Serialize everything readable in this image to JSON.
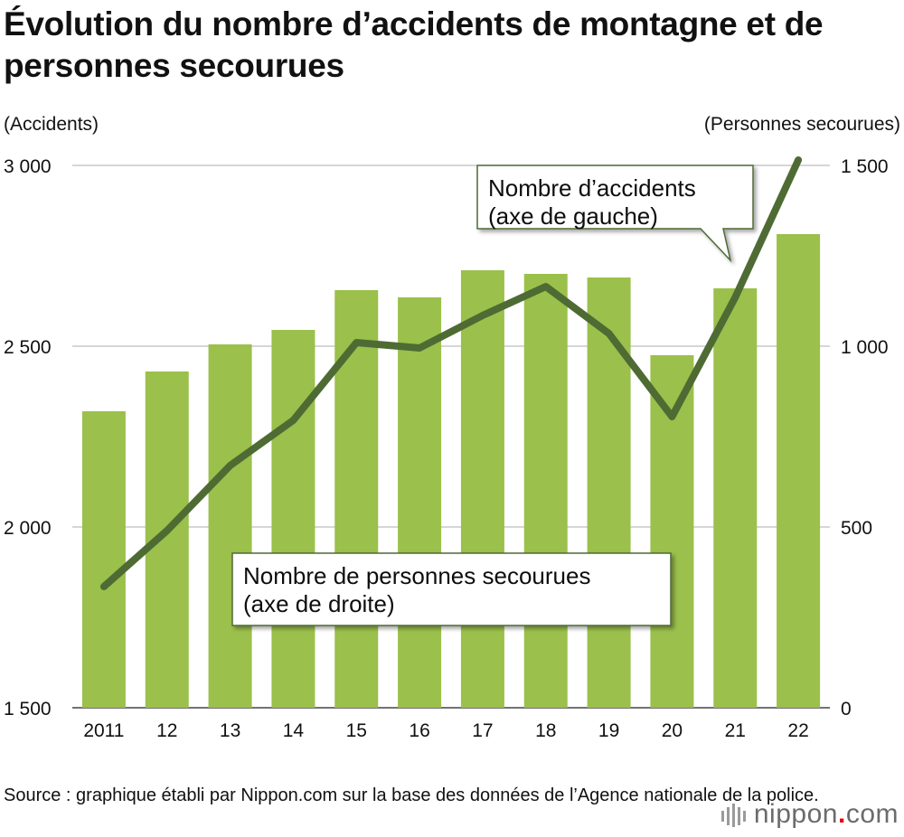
{
  "title": "Évolution du nombre d’accidents de montagne et de personnes secourues",
  "left_axis_unit": "(Accidents)",
  "right_axis_unit": "(Personnes secourues)",
  "source": "Source : graphique établi par Nippon.com sur la base des données de l’Agence nationale de la police.",
  "logo": {
    "name": "nippon",
    "dot": ".",
    "suffix": "com",
    "icon": "nippon-logo-icon"
  },
  "colors": {
    "bar": "#9bc04b",
    "line": "#4e6b34",
    "grid": "#bdbdbd",
    "text": "#111111"
  },
  "chart_data": {
    "type": "bar",
    "categories": [
      "2011",
      "12",
      "13",
      "14",
      "15",
      "16",
      "17",
      "18",
      "19",
      "20",
      "21",
      "22"
    ],
    "series": [
      {
        "name": "Nombre d’accidents",
        "type": "bar",
        "axis": "left",
        "values": [
          2320,
          2430,
          2505,
          2545,
          2655,
          2635,
          2710,
          2700,
          2690,
          2475,
          2660,
          2810
        ]
      },
      {
        "name": "Nombre de personnes secourues",
        "type": "line",
        "axis": "right",
        "values": [
          335,
          490,
          670,
          795,
          1010,
          995,
          1085,
          1165,
          1035,
          805,
          1135,
          1515
        ]
      }
    ],
    "left_axis": {
      "label": "(Accidents)",
      "ylim": [
        1500,
        3000
      ],
      "ticks": [
        1500,
        2000,
        2500,
        3000
      ],
      "tick_labels": [
        "1 500",
        "2 000",
        "2 500",
        "3 000"
      ]
    },
    "right_axis": {
      "label": "(Personnes secourues)",
      "ylim": [
        0,
        1500
      ],
      "ticks": [
        0,
        500,
        1000,
        1500
      ],
      "tick_labels": [
        "0",
        "500",
        "1 000",
        "1 500"
      ]
    },
    "annotations": [
      {
        "lines": [
          "Nombre d’accidents",
          "(axe de gauche)"
        ]
      },
      {
        "lines": [
          "Nombre de personnes secourues",
          "(axe de droite)"
        ]
      }
    ],
    "grid": true
  }
}
